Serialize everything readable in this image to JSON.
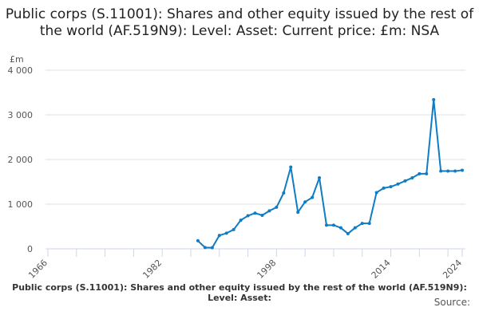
{
  "chart_data": {
    "type": "line",
    "title": "Public corps (S.11001): Shares and other equity issued by the rest of the world (AF.519N9): Level: Asset: Current price: £m: NSA",
    "ylabel": "£m",
    "xlabel": "",
    "xlim": [
      1966,
      2024
    ],
    "ylim": [
      0,
      4000
    ],
    "yticks": [
      0,
      1000,
      2000,
      3000,
      4000
    ],
    "ytick_labels": [
      "0",
      "1 000",
      "2 000",
      "3 000",
      "4 000"
    ],
    "xtick_labels": [
      "1966",
      "1982",
      "1998",
      "2014",
      "2024"
    ],
    "grid": true,
    "color": "#0f7cc4",
    "series": [
      {
        "name": "Public corps (S.11001): Shares and other equity issued by the rest of the world (AF.519N9): Level: Asset: Current price: £m: NSA",
        "x": [
          1987,
          1988,
          1989,
          1990,
          1991,
          1992,
          1993,
          1994,
          1995,
          1996,
          1997,
          1998,
          1999,
          2000,
          2001,
          2002,
          2003,
          2004,
          2005,
          2006,
          2007,
          2008,
          2009,
          2010,
          2011,
          2012,
          2013,
          2014,
          2015,
          2016,
          2017,
          2018,
          2019,
          2020,
          2021,
          2022,
          2023,
          2024
        ],
        "values": [
          180,
          30,
          25,
          300,
          350,
          430,
          640,
          740,
          800,
          750,
          850,
          930,
          1250,
          1830,
          820,
          1050,
          1150,
          1590,
          530,
          530,
          470,
          340,
          470,
          570,
          570,
          1260,
          1360,
          1390,
          1450,
          1520,
          1590,
          1680,
          1680,
          3340,
          1740,
          1740,
          1740,
          1760
        ]
      }
    ]
  },
  "caption": "Public corps (S.11001): Shares and other equity issued by the rest of the world (AF.519N9): Level: Asset:",
  "source_label": "Source:"
}
